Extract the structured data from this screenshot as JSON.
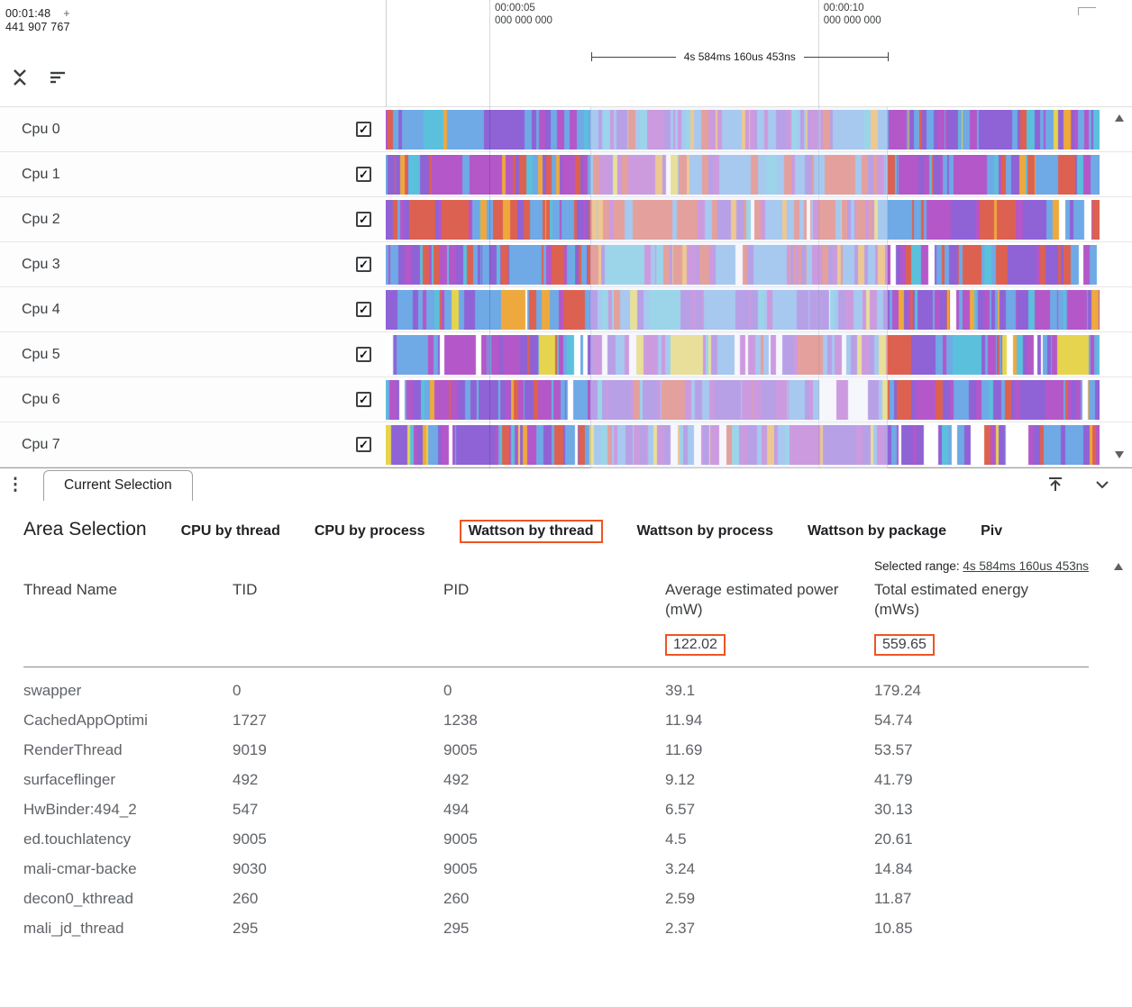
{
  "timeline": {
    "cursor_time": "00:01:48",
    "cursor_marker": "+",
    "cursor_ns": "441 907 767",
    "markers": [
      {
        "time": "00:00:05",
        "ns": "000 000 000",
        "x_pct": 14.5
      },
      {
        "time": "00:00:10",
        "ns": "000 000 000",
        "x_pct": 60.5
      }
    ],
    "span_label": "4s 584ms 160us 453ns",
    "selection": {
      "left_pct": 28.6,
      "width_pct": 41.6
    }
  },
  "stripe_palette": [
    "#6fa9e6",
    "#8f62d6",
    "#b357c9",
    "#dd6150",
    "#5bc0dc",
    "#eea93e",
    "#e6d44e",
    "#ffffff"
  ],
  "tracks": [
    {
      "label": "Cpu 0",
      "checked": true,
      "seed": 101,
      "weights": [
        5,
        3,
        3,
        1.2,
        1.5,
        1.5,
        0.4,
        0.3
      ]
    },
    {
      "label": "Cpu 1",
      "checked": true,
      "seed": 202,
      "weights": [
        4,
        3,
        3,
        3,
        1,
        0.8,
        0.3,
        0.5
      ]
    },
    {
      "label": "Cpu 2",
      "checked": true,
      "seed": 303,
      "weights": [
        3,
        2.5,
        3,
        5,
        0.8,
        0.8,
        0.3,
        0.3
      ]
    },
    {
      "label": "Cpu 3",
      "checked": true,
      "seed": 404,
      "weights": [
        4,
        3,
        3,
        2.5,
        1,
        0.8,
        0.3,
        0.4
      ]
    },
    {
      "label": "Cpu 4",
      "checked": true,
      "seed": 505,
      "weights": [
        5,
        3.5,
        3,
        1,
        1.2,
        0.6,
        0.3,
        0.4
      ]
    },
    {
      "label": "Cpu 5",
      "checked": true,
      "seed": 606,
      "weights": [
        4,
        4,
        3,
        0.6,
        1.2,
        0.4,
        0.6,
        1.8
      ]
    },
    {
      "label": "Cpu 6",
      "checked": true,
      "seed": 707,
      "weights": [
        3.5,
        4,
        4,
        1.5,
        1,
        0.6,
        0.3,
        0.4
      ]
    },
    {
      "label": "Cpu 7",
      "checked": true,
      "seed": 808,
      "weights": [
        3,
        4,
        3.5,
        0.8,
        1,
        0.6,
        1,
        1.8
      ]
    }
  ],
  "details_bar": {
    "tab_label": "Current Selection"
  },
  "panel": {
    "title": "Area Selection",
    "tabs": [
      {
        "label": "CPU by thread",
        "active": false
      },
      {
        "label": "CPU by process",
        "active": false
      },
      {
        "label": "Wattson by thread",
        "active": true
      },
      {
        "label": "Wattson by process",
        "active": false
      },
      {
        "label": "Wattson by package",
        "active": false
      },
      {
        "label": "Piv",
        "active": false
      }
    ],
    "selected_range_label": "Selected range:",
    "selected_range_value": "4s 584ms 160us 453ns",
    "columns": [
      "Thread Name",
      "TID",
      "PID",
      "Average estimated power (mW)",
      "Total estimated energy (mWs)"
    ],
    "summary": {
      "avg_power": "122.02",
      "total_energy": "559.65"
    },
    "rows": [
      {
        "thread": "swapper",
        "tid": "0",
        "pid": "0",
        "avg": "39.1",
        "total": "179.24"
      },
      {
        "thread": "CachedAppOptimi",
        "tid": "1727",
        "pid": "1238",
        "avg": "11.94",
        "total": "54.74"
      },
      {
        "thread": "RenderThread",
        "tid": "9019",
        "pid": "9005",
        "avg": "11.69",
        "total": "53.57"
      },
      {
        "thread": "surfaceflinger",
        "tid": "492",
        "pid": "492",
        "avg": "9.12",
        "total": "41.79"
      },
      {
        "thread": "HwBinder:494_2",
        "tid": "547",
        "pid": "494",
        "avg": "6.57",
        "total": "30.13"
      },
      {
        "thread": "ed.touchlatency",
        "tid": "9005",
        "pid": "9005",
        "avg": "4.5",
        "total": "20.61"
      },
      {
        "thread": "mali-cmar-backe",
        "tid": "9030",
        "pid": "9005",
        "avg": "3.24",
        "total": "14.84"
      },
      {
        "thread": "decon0_kthread",
        "tid": "260",
        "pid": "260",
        "avg": "2.59",
        "total": "11.87"
      },
      {
        "thread": "mali_jd_thread",
        "tid": "295",
        "pid": "295",
        "avg": "2.37",
        "total": "10.85"
      }
    ]
  },
  "colors": {
    "highlight": "#ef5423",
    "gridline": "#bdbdbd"
  }
}
